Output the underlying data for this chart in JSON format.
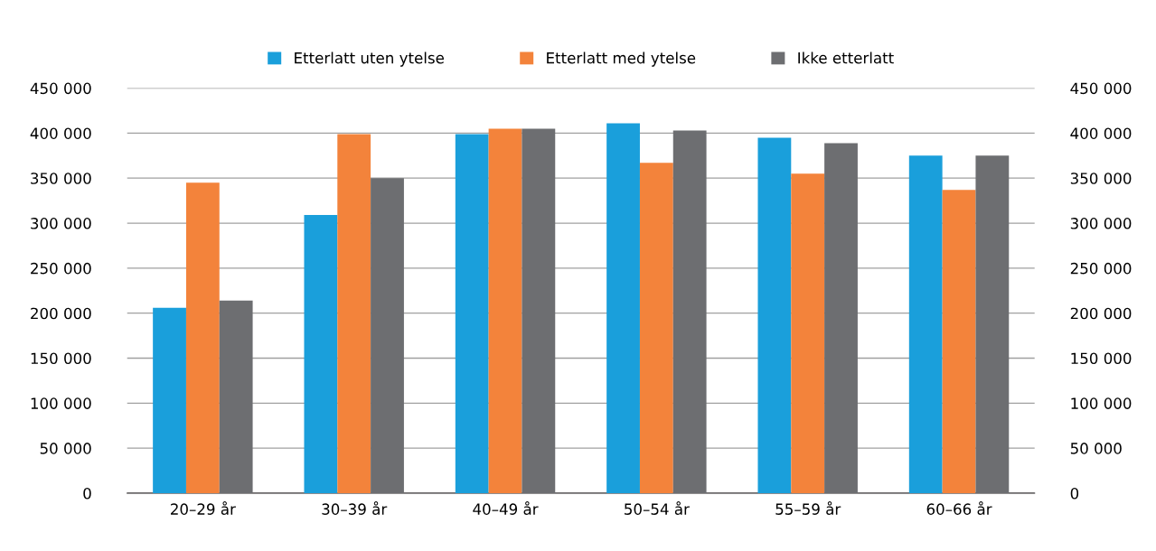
{
  "chart_data": {
    "type": "bar",
    "categories": [
      "20–29 år",
      "30–39 år",
      "40–49 år",
      "50–54 år",
      "55–59 år",
      "60–66 år"
    ],
    "series": [
      {
        "name": "Etterlatt uten ytelse",
        "color": "#1a9fdb",
        "values": [
          206000,
          309000,
          399000,
          411000,
          395000,
          375000
        ]
      },
      {
        "name": "Etterlatt med ytelse",
        "color": "#f3833b",
        "values": [
          345000,
          399000,
          405000,
          367000,
          355000,
          337000
        ]
      },
      {
        "name": "Ikke etterlatt",
        "color": "#6d6e71",
        "values": [
          214000,
          350000,
          405000,
          403000,
          389000,
          375000
        ]
      }
    ],
    "ylim": [
      0,
      450000
    ],
    "yticks": [
      0,
      {
        "value": 50000,
        "label": "50 000"
      },
      {
        "value": 100000,
        "label": "100 000"
      },
      {
        "value": 150000,
        "label": "150 000"
      },
      {
        "value": 200000,
        "label": "200 000"
      },
      {
        "value": 250000,
        "label": "250 000"
      },
      {
        "value": 300000,
        "label": "300 000"
      },
      {
        "value": 350000,
        "label": "350 000"
      },
      {
        "value": 400000,
        "label": "400 000"
      },
      {
        "value": 450000,
        "label": "450 000"
      }
    ],
    "y2lim": [
      0,
      450000
    ],
    "y2ticks": [
      0,
      {
        "value": 50000,
        "label": "50 000"
      },
      {
        "value": 100000,
        "label": "100 000"
      },
      {
        "value": 150000,
        "label": "150 000"
      },
      {
        "value": 200000,
        "label": "200 000"
      },
      {
        "value": 250000,
        "label": "250 000"
      },
      {
        "value": 300000,
        "label": "300 000"
      },
      {
        "value": 350000,
        "label": "350 000"
      },
      {
        "value": 400000,
        "label": "400 000"
      },
      {
        "value": 450000,
        "label": "450 000"
      }
    ],
    "grid": "y",
    "legend": "top"
  }
}
